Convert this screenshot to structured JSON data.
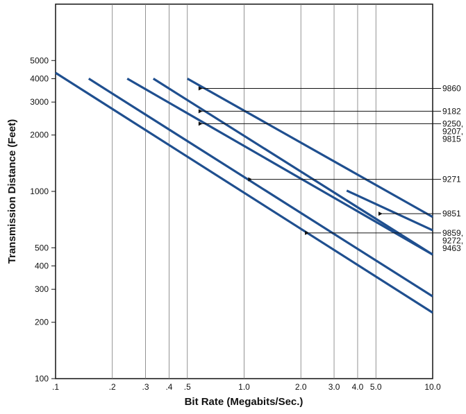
{
  "chart_data": {
    "type": "line",
    "title": "",
    "xlabel": "Bit Rate (Megabits/Sec.)",
    "ylabel": "Transmission Distance (Feet)",
    "x_scale": "log",
    "y_scale": "log",
    "xlim": [
      0.1,
      10.0
    ],
    "ylim": [
      100,
      10000
    ],
    "grid": "vertical",
    "x_ticks": [
      {
        "value": 0.1,
        "label": ".1"
      },
      {
        "value": 0.2,
        "label": ".2"
      },
      {
        "value": 0.3,
        "label": ".3"
      },
      {
        "value": 0.4,
        "label": ".4"
      },
      {
        "value": 0.5,
        "label": ".5"
      },
      {
        "value": 1.0,
        "label": "1.0"
      },
      {
        "value": 2.0,
        "label": "2.0"
      },
      {
        "value": 3.0,
        "label": "3.0"
      },
      {
        "value": 4.0,
        "label": "4.0"
      },
      {
        "value": 5.0,
        "label": "5.0"
      },
      {
        "value": 10.0,
        "label": "10.0"
      }
    ],
    "y_ticks": [
      {
        "value": 100,
        "label": "100"
      },
      {
        "value": 200,
        "label": "200"
      },
      {
        "value": 300,
        "label": "300"
      },
      {
        "value": 400,
        "label": "400"
      },
      {
        "value": 500,
        "label": "500"
      },
      {
        "value": 1000,
        "label": "1000"
      },
      {
        "value": 2000,
        "label": "2000"
      },
      {
        "value": 3000,
        "label": "3000"
      },
      {
        "value": 4000,
        "label": "4000"
      },
      {
        "value": 5000,
        "label": "5000"
      }
    ],
    "series_color": "#1f4f8f",
    "series": [
      {
        "x": [
          0.1,
          10.0
        ],
        "y": [
          4300,
          225
        ]
      },
      {
        "x": [
          0.15,
          10.0
        ],
        "y": [
          4000,
          275
        ]
      },
      {
        "x": [
          0.24,
          10.0
        ],
        "y": [
          4000,
          460
        ]
      },
      {
        "x": [
          0.33,
          10.0
        ],
        "y": [
          4000,
          460
        ]
      },
      {
        "x": [
          0.5,
          10.0
        ],
        "y": [
          4000,
          730
        ]
      },
      {
        "x": [
          3.5,
          10.0
        ],
        "y": [
          1010,
          620
        ]
      }
    ],
    "annotations": [
      {
        "text": "9860",
        "y": 3550,
        "x_end": 0.6
      },
      {
        "text": "9182",
        "y": 2680,
        "x_end": 0.6
      },
      {
        "text": "9250,",
        "y": 2300,
        "x_end": 0.6
      },
      {
        "text": "9207,",
        "y": null,
        "x_end": null
      },
      {
        "text": "9815",
        "y": null,
        "x_end": null
      },
      {
        "text": "9271",
        "y": 1160,
        "x_end": 1.1
      },
      {
        "text": "9851",
        "y": 760,
        "x_end": 5.4
      },
      {
        "text": "9859,",
        "y": 600,
        "x_end": 2.2
      },
      {
        "text": "9272,",
        "y": null,
        "x_end": null
      },
      {
        "text": "9463",
        "y": null,
        "x_end": null
      }
    ]
  }
}
